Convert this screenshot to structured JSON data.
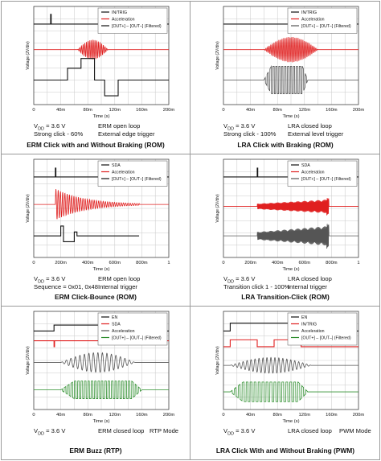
{
  "colors": {
    "black": "#111111",
    "red": "#e02020",
    "gray": "#555555",
    "green": "#2f8f2f"
  },
  "chart_data": [
    {
      "type": "line",
      "title": "ERM Click with and Without Braking (ROM)",
      "xlabel": "Time (s)",
      "ylabel": "Voltage (2V/div)",
      "xlim": [
        0,
        0.2
      ],
      "xticks": [
        "0",
        "40m",
        "80m",
        "120m",
        "160m",
        "200m"
      ],
      "series": [
        {
          "name": "IN/TRIG",
          "color": "black",
          "kind": "pulse",
          "level": 0.82,
          "events": [
            {
              "x": 0.025,
              "h": 0.1
            }
          ]
        },
        {
          "name": "Acceleration",
          "color": "red",
          "kind": "burst",
          "level": 0.56,
          "start": 0.065,
          "end": 0.11,
          "amp": 0.1,
          "freq": 400
        },
        {
          "name": "[OUT+] – [OUT–] (Filtered)",
          "color": "black",
          "kind": "steps",
          "level": 0.25,
          "points": [
            [
              0,
              0
            ],
            [
              0.05,
              0
            ],
            [
              0.05,
              0.12
            ],
            [
              0.07,
              0.12
            ],
            [
              0.07,
              0.22
            ],
            [
              0.09,
              0.22
            ],
            [
              0.09,
              0.0
            ],
            [
              0.105,
              0.0
            ],
            [
              0.105,
              -0.16
            ],
            [
              0.125,
              -0.16
            ],
            [
              0.125,
              0
            ],
            [
              0.2,
              0
            ]
          ]
        }
      ],
      "captions": {
        "vdd": "V",
        "vdd_sub": "DD",
        "vdd_rest": " = 3.6 V",
        "left2": "Strong click - 60%",
        "right1": "ERM open loop",
        "right2": "External edge trigger"
      }
    },
    {
      "type": "line",
      "title": "LRA Click with Braking (ROM)",
      "xlabel": "Time (s)",
      "ylabel": "Voltage (2V/div)",
      "xlim": [
        0,
        0.2
      ],
      "xticks": [
        "0",
        "40m",
        "80m",
        "120m",
        "160m",
        "200m"
      ],
      "series": [
        {
          "name": "IN/TRIG",
          "color": "black",
          "kind": "pulse",
          "level": 0.82,
          "events": []
        },
        {
          "name": "Acceleration",
          "color": "red",
          "kind": "burst",
          "level": 0.56,
          "start": 0.06,
          "end": 0.14,
          "amp": 0.13,
          "freq": 420
        },
        {
          "name": "[OUT+] – [OUT–] (Filtered)",
          "color": "gray",
          "kind": "square",
          "level": 0.25,
          "start": 0.06,
          "end": 0.125,
          "amp": 0.14,
          "freq": 230
        }
      ],
      "captions": {
        "vdd": "V",
        "vdd_sub": "DD",
        "vdd_rest": " = 3.6 V",
        "left2": "Strong click - 100%",
        "right1": "LRA closed loop",
        "right2": "External level trigger"
      }
    },
    {
      "type": "line",
      "title": "ERM Click-Bounce (ROM)",
      "xlabel": "Time (s)",
      "ylabel": "Voltage (2V/div)",
      "xlim": [
        0,
        1.0
      ],
      "xticks": [
        "0",
        "200m",
        "400m",
        "600m",
        "800m",
        "1"
      ],
      "series": [
        {
          "name": "SDA",
          "color": "black",
          "kind": "pulse",
          "level": 0.82,
          "events": [
            {
              "x": 0.16,
              "h": 0.09
            }
          ]
        },
        {
          "name": "Acceleration",
          "color": "red",
          "kind": "decay",
          "level": 0.54,
          "start": 0.16,
          "end": 0.78,
          "amp": 0.16,
          "freq": 60,
          "tau": 0.22
        },
        {
          "name": "[OUT+] – [OUT–] (Filtered)",
          "color": "black",
          "kind": "steps",
          "level": 0.22,
          "points": [
            [
              0,
              0
            ],
            [
              0.2,
              0
            ],
            [
              0.2,
              0.1
            ],
            [
              0.22,
              0.1
            ],
            [
              0.22,
              -0.06
            ],
            [
              0.3,
              -0.06
            ],
            [
              0.3,
              0.04
            ],
            [
              0.32,
              0.04
            ],
            [
              0.32,
              0
            ],
            [
              0.78,
              0
            ]
          ]
        }
      ],
      "captions": {
        "vdd": "V",
        "vdd_sub": "DD",
        "vdd_rest": " = 3.6 V",
        "left2": "Sequence = 0x01, 0x48",
        "right1": "ERM open loop",
        "right2": "Internal trigger"
      }
    },
    {
      "type": "line",
      "title": "LRA Transition-Click (ROM)",
      "xlabel": "Time (s)",
      "ylabel": "Voltage (2V/div)",
      "xlim": [
        0,
        1.0
      ],
      "xticks": [
        "0",
        "200m",
        "400m",
        "600m",
        "800m",
        "1"
      ],
      "series": [
        {
          "name": "SDA",
          "color": "black",
          "kind": "pulse",
          "level": 0.82,
          "events": [
            {
              "x": 0.25,
              "h": 0.09
            }
          ]
        },
        {
          "name": "Acceleration",
          "color": "red",
          "kind": "ramp",
          "level": 0.52,
          "start": 0.25,
          "end": 0.78,
          "amp": 0.07,
          "freq": 180
        },
        {
          "name": "[OUT+] – [OUT–] (Filtered)",
          "color": "gray",
          "kind": "ramp",
          "level": 0.22,
          "start": 0.25,
          "end": 0.78,
          "amp": 0.1,
          "freq": 180
        }
      ],
      "captions": {
        "vdd": "V",
        "vdd_sub": "DD",
        "vdd_rest": " = 3.6 V",
        "left2": "Transition click 1 - 100%",
        "right1": "LRA closed loop",
        "right2": "Internal trigger"
      }
    },
    {
      "type": "line",
      "title": "ERM Buzz (RTP)",
      "xlabel": "Time (s)",
      "ylabel": "Voltage (2V/div)",
      "xlim": [
        0,
        0.2
      ],
      "xticks": [
        "0",
        "40m",
        "80m",
        "120m",
        "160m",
        "200m"
      ],
      "series": [
        {
          "name": "EN",
          "color": "black",
          "kind": "steps",
          "level": 0.8,
          "points": [
            [
              0,
              0
            ],
            [
              0.03,
              0
            ],
            [
              0.03,
              0.06
            ],
            [
              0.165,
              0.06
            ],
            [
              0.165,
              0
            ],
            [
              0.2,
              0
            ]
          ]
        },
        {
          "name": "SDA",
          "color": "red",
          "kind": "pulse",
          "level": 0.7,
          "events": [
            {
              "x": 0.03,
              "h": -0.06
            },
            {
              "x": 0.125,
              "h": 0.06
            }
          ]
        },
        {
          "name": "Acceleration",
          "color": "gray",
          "kind": "burst",
          "level": 0.48,
          "start": 0.04,
          "end": 0.15,
          "amp": 0.1,
          "freq": 150
        },
        {
          "name": "[OUT+] – [OUT–] (Filtered)",
          "color": "green",
          "kind": "square",
          "level": 0.2,
          "start": 0.04,
          "end": 0.16,
          "amp": 0.09,
          "freq": 200
        }
      ],
      "captions": {
        "vdd": "V",
        "vdd_sub": "DD",
        "vdd_rest": " = 3.6 V",
        "left2": "",
        "right1": "ERM closed loop",
        "right2": "",
        "far": "RTP Mode"
      }
    },
    {
      "type": "line",
      "title": "LRA Click With and Without Braking (PWM)",
      "xlabel": "Time (s)",
      "ylabel": "Voltage (2V/div)",
      "xlim": [
        0,
        0.2
      ],
      "xticks": [
        "0",
        "40m",
        "80m",
        "120m",
        "160m",
        "200m"
      ],
      "series": [
        {
          "name": "EN",
          "color": "black",
          "kind": "steps",
          "level": 0.8,
          "points": [
            [
              0,
              0
            ],
            [
              0.01,
              0
            ],
            [
              0.01,
              0.08
            ],
            [
              0.15,
              0.08
            ],
            [
              0.15,
              0
            ],
            [
              0.2,
              0
            ]
          ]
        },
        {
          "name": "IN/TRIG",
          "color": "red",
          "kind": "steps",
          "level": 0.64,
          "points": [
            [
              0,
              0
            ],
            [
              0.01,
              0
            ],
            [
              0.01,
              0.07
            ],
            [
              0.05,
              0.07
            ],
            [
              0.05,
              0
            ],
            [
              0.075,
              0
            ],
            [
              0.075,
              0.07
            ],
            [
              0.115,
              0.07
            ],
            [
              0.115,
              0
            ],
            [
              0.2,
              0
            ]
          ]
        },
        {
          "name": "Acceleration",
          "color": "gray",
          "kind": "burst",
          "level": 0.45,
          "start": 0.01,
          "end": 0.13,
          "amp": 0.08,
          "freq": 170
        },
        {
          "name": "[OUT+] – [OUT–] (Filtered)",
          "color": "green",
          "kind": "square",
          "level": 0.18,
          "start": 0.01,
          "end": 0.125,
          "amp": 0.1,
          "freq": 170
        }
      ],
      "captions": {
        "vdd": "V",
        "vdd_sub": "DD",
        "vdd_rest": " = 3.6 V",
        "left2": "",
        "right1": "LRA closed loop",
        "right2": "",
        "far": "PWM Mode"
      }
    }
  ]
}
